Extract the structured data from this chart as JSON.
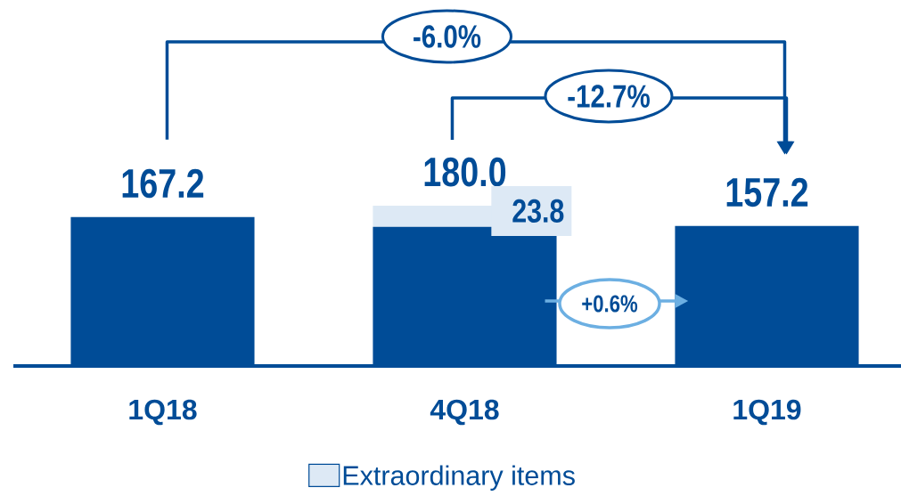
{
  "chart_data": {
    "type": "bar",
    "stacked": true,
    "categories": [
      "1Q18",
      "4Q18",
      "1Q19"
    ],
    "series": [
      {
        "color": "#004c97",
        "values": [
          167.2,
          156.2,
          157.2
        ],
        "value_labels": [
          "167.2",
          null,
          "157.2"
        ]
      },
      {
        "name": "Extraordinary items",
        "color": "#dde9f5",
        "values": [
          null,
          23.8,
          null
        ],
        "value_labels": [
          null,
          "23.8",
          null
        ]
      }
    ],
    "totals": [
      null,
      "180.0",
      null
    ],
    "annotations": [
      "-6.0%",
      "-12.7%",
      "+0.6%"
    ],
    "legend": "bottom"
  }
}
